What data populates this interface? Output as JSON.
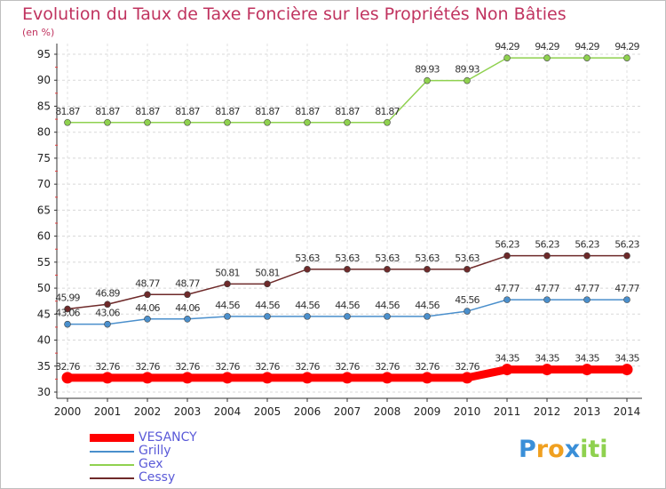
{
  "chart_data": {
    "type": "line",
    "title": "Evolution du Taux de Taxe Foncière sur les Propriétés Non Bâties",
    "ylabel": "(en %)",
    "xlabel": "",
    "ylim": [
      30,
      95
    ],
    "yticks": [
      30,
      35,
      40,
      45,
      50,
      55,
      60,
      65,
      70,
      75,
      80,
      85,
      90,
      95
    ],
    "categories": [
      "2000",
      "2001",
      "2002",
      "2003",
      "2004",
      "2005",
      "2006",
      "2007",
      "2008",
      "2009",
      "2010",
      "2011",
      "2012",
      "2013",
      "2014"
    ],
    "series": [
      {
        "name": "VESANCY",
        "color": "#ff0000",
        "values": [
          32.76,
          32.76,
          32.76,
          32.76,
          32.76,
          32.76,
          32.76,
          32.76,
          32.76,
          32.76,
          32.76,
          34.35,
          34.35,
          34.35,
          34.35
        ],
        "labels": [
          "32.76",
          "32.76",
          "32.76",
          "32.76",
          "32.76",
          "32.76",
          "32.76",
          "32.76",
          "32.76",
          "32.76",
          "32.76",
          "34.35",
          "34.35",
          "34.35",
          "34.35"
        ]
      },
      {
        "name": "Grilly",
        "color": "#4a8fcc",
        "values": [
          43.06,
          43.06,
          44.06,
          44.06,
          44.56,
          44.56,
          44.56,
          44.56,
          44.56,
          44.56,
          45.56,
          47.77,
          47.77,
          47.77,
          47.77
        ],
        "labels": [
          "43.06",
          "43.06",
          "44.06",
          "44.06",
          "44.56",
          "44.56",
          "44.56",
          "44.56",
          "44.56",
          "44.56",
          "45.56",
          "47.77",
          "47.77",
          "47.77",
          "47.77"
        ]
      },
      {
        "name": "Gex",
        "color": "#8fd14f",
        "values": [
          81.87,
          81.87,
          81.87,
          81.87,
          81.87,
          81.87,
          81.87,
          81.87,
          81.87,
          89.93,
          89.93,
          94.29,
          94.29,
          94.29,
          94.29
        ],
        "labels": [
          "81.87",
          "81.87",
          "81.87",
          "81.87",
          "81.87",
          "81.87",
          "81.87",
          "81.87",
          "81.87",
          "89.93",
          "89.93",
          "94.29",
          "94.29",
          "94.29",
          "94.29"
        ]
      },
      {
        "name": "Cessy",
        "color": "#6e2a2a",
        "values": [
          45.99,
          46.89,
          48.77,
          48.77,
          50.81,
          50.81,
          53.63,
          53.63,
          53.63,
          53.63,
          53.63,
          56.23,
          56.23,
          56.23,
          56.23
        ],
        "labels": [
          "45.99",
          "46.89",
          "48.77",
          "48.77",
          "50.81",
          "50.81",
          "53.63",
          "53.63",
          "53.63",
          "53.63",
          "53.63",
          "56.23",
          "56.23",
          "56.23",
          "56.23"
        ]
      }
    ],
    "legend": {
      "position": "bottom-left"
    },
    "grid": true
  },
  "logo": {
    "letters": [
      "P",
      "r",
      "o",
      "x",
      "i",
      "t",
      "i"
    ],
    "colors": [
      "#3a8fd8",
      "#f0a020",
      "#f0a020",
      "#3a8fd8",
      "#8fd14f",
      "#8fd14f",
      "#8fd14f"
    ]
  }
}
